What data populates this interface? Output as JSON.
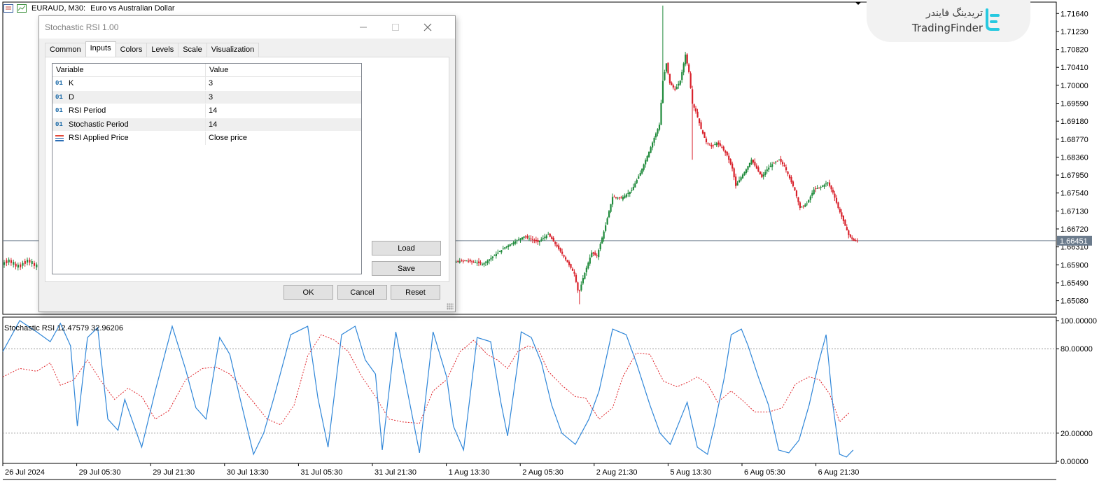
{
  "window": {
    "symbol": "EURAUD, M30:",
    "description": "Euro vs Australian Dollar"
  },
  "indicator_label": "Stochastic RSI 12.47579 32.96206",
  "watermark": {
    "text_fa": "تریدینگ فایندر",
    "text_en": "TradingFinder"
  },
  "dialog": {
    "title": "Stochastic RSI 1.00",
    "tabs": [
      {
        "label": "Common",
        "active": false
      },
      {
        "label": "Inputs",
        "active": true
      },
      {
        "label": "Colors",
        "active": false
      },
      {
        "label": "Levels",
        "active": false
      },
      {
        "label": "Scale",
        "active": false
      },
      {
        "label": "Visualization",
        "active": false
      }
    ],
    "table": {
      "headers": {
        "variable": "Variable",
        "value": "Value"
      },
      "rows": [
        {
          "type": "int",
          "icon_text": "01",
          "name": "K",
          "value": "3"
        },
        {
          "type": "int",
          "icon_text": "01",
          "name": "D",
          "value": "3"
        },
        {
          "type": "int",
          "icon_text": "01",
          "name": "RSI Period",
          "value": "14"
        },
        {
          "type": "int",
          "icon_text": "01",
          "name": "Stochastic Period",
          "value": "14"
        },
        {
          "type": "enum",
          "icon_text": "",
          "name": "RSI Applied Price",
          "value": "Close price"
        }
      ]
    },
    "buttons": {
      "load": "Load",
      "save": "Save",
      "ok": "OK",
      "cancel": "Cancel",
      "reset": "Reset"
    }
  },
  "chart_data": {
    "type": "candlestick",
    "price_axis": {
      "ticks": [
        "1.71640",
        "1.71230",
        "1.70820",
        "1.70410",
        "1.70000",
        "1.69590",
        "1.69180",
        "1.68770",
        "1.68360",
        "1.67950",
        "1.67540",
        "1.67130",
        "1.66720",
        "1.66310",
        "1.65900",
        "1.65490",
        "1.65080"
      ],
      "current_price": "1.66451",
      "range": [
        1.6477,
        1.719
      ]
    },
    "time_axis": [
      "26 Jul 2024",
      "29 Jul 05:30",
      "29 Jul 21:30",
      "30 Jul 13:30",
      "31 Jul 05:30",
      "31 Jul 21:30",
      "1 Aug 13:30",
      "2 Aug 05:30",
      "2 Aug 21:30",
      "5 Aug 13:30",
      "6 Aug 05:30",
      "6 Aug 21:30"
    ],
    "close_path": [
      [
        0,
        1.659
      ],
      [
        18,
        1.6595
      ],
      [
        35,
        1.66
      ],
      [
        55,
        1.6592
      ],
      [
        80,
        1.663
      ],
      [
        102,
        1.6655
      ],
      [
        118,
        1.6642
      ],
      [
        130,
        1.666
      ],
      [
        147,
        1.6612
      ],
      [
        160,
        1.657
      ],
      [
        165,
        1.6522
      ],
      [
        170,
        1.656
      ],
      [
        180,
        1.6618
      ],
      [
        186,
        1.661
      ],
      [
        196,
        1.668
      ],
      [
        204,
        1.6745
      ],
      [
        214,
        1.6742
      ],
      [
        226,
        1.676
      ],
      [
        236,
        1.68
      ],
      [
        246,
        1.6848
      ],
      [
        252,
        1.688
      ],
      [
        258,
        1.691
      ],
      [
        262,
        1.701
      ],
      [
        266,
        1.705
      ],
      [
        270,
        1.7005
      ],
      [
        276,
        1.699
      ],
      [
        282,
        1.701
      ],
      [
        288,
        1.707
      ],
      [
        292,
        1.703
      ],
      [
        296,
        1.6958
      ],
      [
        300,
        1.694
      ],
      [
        306,
        1.69
      ],
      [
        312,
        1.687
      ],
      [
        318,
        1.686
      ],
      [
        324,
        1.6868
      ],
      [
        330,
        1.6858
      ],
      [
        336,
        1.684
      ],
      [
        342,
        1.681
      ],
      [
        346,
        1.677
      ],
      [
        352,
        1.679
      ],
      [
        358,
        1.6808
      ],
      [
        364,
        1.683
      ],
      [
        370,
        1.681
      ],
      [
        376,
        1.679
      ],
      [
        382,
        1.6808
      ],
      [
        388,
        1.682
      ],
      [
        396,
        1.683
      ],
      [
        402,
        1.6815
      ],
      [
        408,
        1.6788
      ],
      [
        414,
        1.676
      ],
      [
        420,
        1.672
      ],
      [
        428,
        1.673
      ],
      [
        436,
        1.6762
      ],
      [
        444,
        1.6768
      ],
      [
        452,
        1.6778
      ],
      [
        458,
        1.6755
      ],
      [
        464,
        1.672
      ],
      [
        470,
        1.669
      ],
      [
        476,
        1.6658
      ],
      [
        482,
        1.6645
      ],
      [
        486,
        1.6645
      ]
    ],
    "stochastic_rsi": {
      "axis_ticks": [
        "100.00000",
        "80.00000",
        "20.00000",
        "0.00000"
      ],
      "levels": [
        80,
        20
      ],
      "series": [
        {
          "name": "K",
          "color": "#2f86d8",
          "style": "solid"
        },
        {
          "name": "D",
          "color": "#e0252b",
          "style": "dotted"
        }
      ],
      "last_values": {
        "K": 12.47579,
        "D": 32.96206
      },
      "k_points": [
        [
          0,
          78
        ],
        [
          10,
          100
        ],
        [
          20,
          92
        ],
        [
          28,
          85
        ],
        [
          34,
          98
        ],
        [
          40,
          82
        ],
        [
          44,
          25
        ],
        [
          50,
          88
        ],
        [
          56,
          95
        ],
        [
          62,
          30
        ],
        [
          68,
          22
        ],
        [
          72,
          44
        ],
        [
          82,
          10
        ],
        [
          90,
          50
        ],
        [
          100,
          96
        ],
        [
          108,
          65
        ],
        [
          114,
          38
        ],
        [
          120,
          30
        ],
        [
          128,
          88
        ],
        [
          134,
          76
        ],
        [
          140,
          45
        ],
        [
          148,
          5
        ],
        [
          154,
          20
        ],
        [
          160,
          45
        ],
        [
          170,
          90
        ],
        [
          180,
          96
        ],
        [
          186,
          45
        ],
        [
          192,
          10
        ],
        [
          200,
          90
        ],
        [
          208,
          96
        ],
        [
          214,
          72
        ],
        [
          220,
          62
        ],
        [
          224,
          8
        ],
        [
          232,
          92
        ],
        [
          238,
          55
        ],
        [
          246,
          6
        ],
        [
          254,
          92
        ],
        [
          262,
          60
        ],
        [
          266,
          25
        ],
        [
          272,
          8
        ],
        [
          280,
          88
        ],
        [
          288,
          85
        ],
        [
          294,
          42
        ],
        [
          298,
          18
        ],
        [
          304,
          70
        ],
        [
          306,
          92
        ],
        [
          312,
          88
        ],
        [
          318,
          70
        ],
        [
          324,
          40
        ],
        [
          330,
          20
        ],
        [
          338,
          12
        ],
        [
          346,
          30
        ],
        [
          352,
          50
        ],
        [
          360,
          94
        ],
        [
          368,
          90
        ],
        [
          374,
          70
        ],
        [
          382,
          40
        ],
        [
          388,
          20
        ],
        [
          394,
          12
        ],
        [
          400,
          30
        ],
        [
          404,
          42
        ],
        [
          410,
          10
        ],
        [
          416,
          5
        ],
        [
          420,
          25
        ],
        [
          426,
          60
        ],
        [
          430,
          90
        ],
        [
          436,
          94
        ],
        [
          440,
          82
        ],
        [
          446,
          60
        ],
        [
          452,
          40
        ],
        [
          458,
          8
        ],
        [
          464,
          6
        ],
        [
          470,
          15
        ],
        [
          476,
          40
        ],
        [
          482,
          72
        ],
        [
          486,
          90
        ],
        [
          490,
          40
        ],
        [
          494,
          5
        ],
        [
          498,
          3
        ],
        [
          502,
          8
        ]
      ],
      "d_points": [
        [
          0,
          60
        ],
        [
          10,
          66
        ],
        [
          20,
          64
        ],
        [
          28,
          70
        ],
        [
          34,
          54
        ],
        [
          42,
          58
        ],
        [
          50,
          72
        ],
        [
          58,
          57
        ],
        [
          66,
          44
        ],
        [
          74,
          52
        ],
        [
          82,
          46
        ],
        [
          90,
          30
        ],
        [
          98,
          36
        ],
        [
          108,
          58
        ],
        [
          118,
          66
        ],
        [
          126,
          67
        ],
        [
          134,
          62
        ],
        [
          140,
          54
        ],
        [
          148,
          42
        ],
        [
          156,
          30
        ],
        [
          164,
          26
        ],
        [
          172,
          40
        ],
        [
          180,
          75
        ],
        [
          188,
          90
        ],
        [
          196,
          86
        ],
        [
          204,
          78
        ],
        [
          212,
          60
        ],
        [
          220,
          46
        ],
        [
          228,
          30
        ],
        [
          236,
          28
        ],
        [
          246,
          27
        ],
        [
          254,
          50
        ],
        [
          262,
          58
        ],
        [
          270,
          78
        ],
        [
          278,
          86
        ],
        [
          286,
          76
        ],
        [
          292,
          72
        ],
        [
          298,
          66
        ],
        [
          304,
          78
        ],
        [
          310,
          82
        ],
        [
          316,
          80
        ],
        [
          322,
          64
        ],
        [
          330,
          54
        ],
        [
          338,
          46
        ],
        [
          344,
          45
        ],
        [
          352,
          30
        ],
        [
          360,
          38
        ],
        [
          366,
          60
        ],
        [
          374,
          77
        ],
        [
          382,
          76
        ],
        [
          390,
          57
        ],
        [
          398,
          53
        ],
        [
          404,
          56
        ],
        [
          410,
          60
        ],
        [
          416,
          55
        ],
        [
          422,
          42
        ],
        [
          430,
          50
        ],
        [
          436,
          44
        ],
        [
          444,
          35
        ],
        [
          452,
          35
        ],
        [
          460,
          38
        ],
        [
          468,
          55
        ],
        [
          476,
          60
        ],
        [
          482,
          58
        ],
        [
          488,
          48
        ],
        [
          494,
          28
        ],
        [
          500,
          35
        ]
      ]
    }
  }
}
